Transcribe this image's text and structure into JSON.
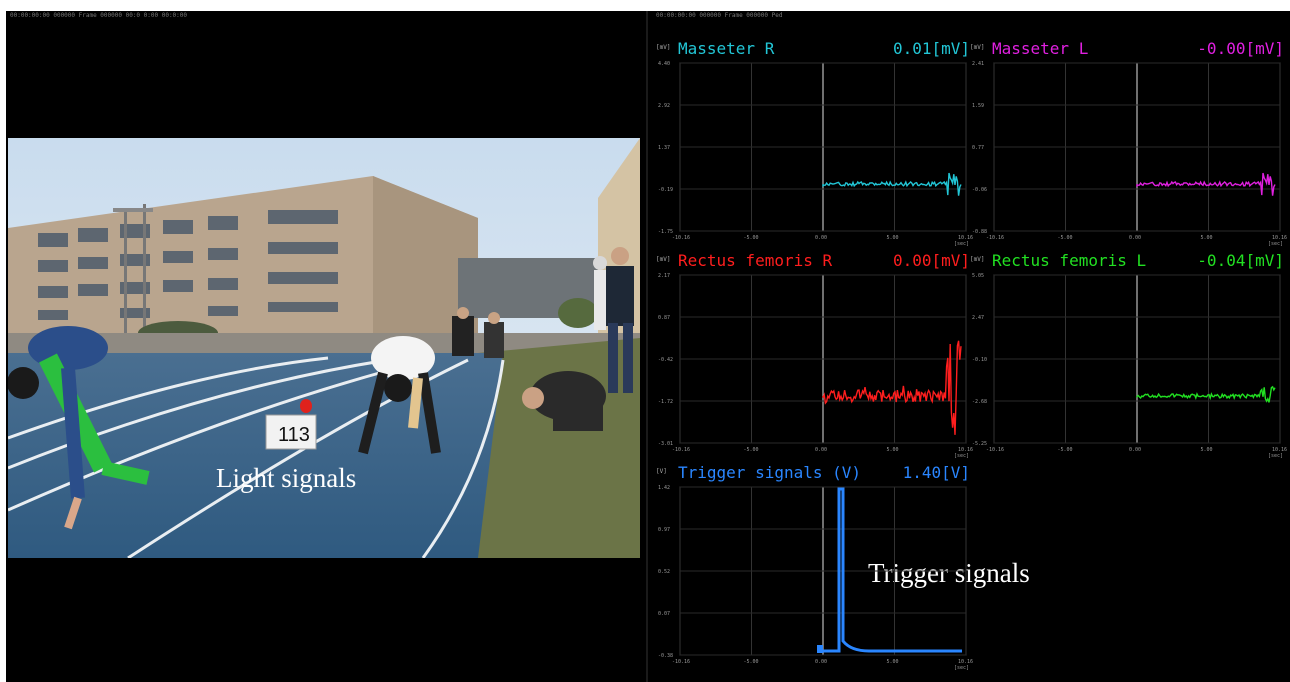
{
  "topbar": {
    "left_text": "00:00:00:00 000000   Frame 000000   00:0 0:00  00:0:00",
    "right_text": "00:00:00:00 000000   Frame 000000   Ped"
  },
  "video": {
    "label_light": "Light signals",
    "label_trigger": "Trigger signals",
    "bib_number": "113"
  },
  "colors": {
    "masseter_r": "#22c6d6",
    "masseter_l": "#e020e0",
    "rectus_r": "#ff1e1e",
    "rectus_l": "#22e022",
    "trigger": "#2a86ff"
  },
  "panels": {
    "masseter_r": {
      "unit": "[mV]",
      "name": "Masseter R",
      "value": "0.01[mV]",
      "y_ticks": [
        "4.40",
        "2.92",
        "1.37",
        "-0.19",
        "-1.75"
      ],
      "x_ticks": [
        "-10.16",
        "-5.00",
        "0.00",
        "5.00",
        "10.16"
      ],
      "x_unit": "[sec]"
    },
    "masseter_l": {
      "unit": "[mV]",
      "name": "Masseter L",
      "value": "-0.00[mV]",
      "y_ticks": [
        "2.41",
        "1.59",
        "0.77",
        "-0.06",
        "-0.88"
      ],
      "x_ticks": [
        "-10.16",
        "-5.00",
        "0.00",
        "5.00",
        "10.16"
      ],
      "x_unit": "[sec]"
    },
    "rectus_r": {
      "unit": "[mV]",
      "name": "Rectus femoris R",
      "value": "0.00[mV]",
      "y_ticks": [
        "2.17",
        "0.87",
        "-0.42",
        "-1.72",
        "-3.01"
      ],
      "x_ticks": [
        "-10.16",
        "-5.00",
        "0.00",
        "5.00",
        "10.16"
      ],
      "x_unit": "[sec]"
    },
    "rectus_l": {
      "unit": "[mV]",
      "name": "Rectus femoris L",
      "value": "-0.04[mV]",
      "y_ticks": [
        "5.05",
        "2.47",
        "-0.10",
        "-2.68",
        "-5.25"
      ],
      "x_ticks": [
        "-10.16",
        "-5.00",
        "0.00",
        "5.00",
        "10.16"
      ],
      "x_unit": "[sec]"
    },
    "trigger": {
      "unit": "[V]",
      "name": "Trigger signals (V)",
      "value": "1.40[V]",
      "y_ticks": [
        "1.42",
        "0.97",
        "0.52",
        "0.07",
        "-0.38"
      ],
      "x_ticks": [
        "-10.16",
        "-5.00",
        "0.00",
        "5.00",
        "10.16"
      ],
      "x_unit": "[sec]"
    }
  }
}
